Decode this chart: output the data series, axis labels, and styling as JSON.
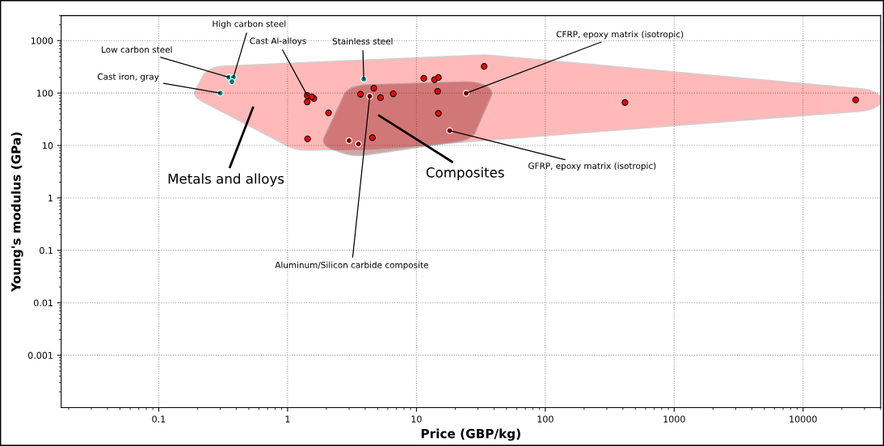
{
  "chart_data": {
    "type": "scatter",
    "xlabel": "Price (GBP/kg)",
    "ylabel": "Young's modulus (GPa)",
    "log": "xy",
    "marker": "circle",
    "grid": true,
    "xlim": [
      0.0175,
      40000
    ],
    "ylim": [
      0.0001,
      3000
    ],
    "xticks": [
      0.1,
      1,
      10,
      100,
      1000,
      10000
    ],
    "yticks": [
      0.001,
      0.01,
      0.1,
      1,
      10,
      100,
      1000
    ],
    "series": [
      {
        "color": "#ff0000",
        "x": [
          1.42,
          1.42,
          1.6,
          1.54,
          2.08,
          1.43,
          3.68,
          4.67,
          5.26,
          6.6,
          4.55,
          11.4,
          13.8,
          14.8,
          14.6,
          14.8,
          33.5,
          415,
          25600
        ],
        "values": [
          90,
          68,
          79,
          85,
          42,
          13.4,
          95,
          124,
          82,
          97,
          14.1,
          191,
          180,
          198,
          108,
          41,
          322,
          66,
          74
        ]
      },
      {
        "color": "#008080",
        "x": [
          0.3,
          0.35,
          0.38,
          0.37,
          3.9
        ],
        "values": [
          100,
          200,
          200,
          165,
          185
        ]
      },
      {
        "color": "#800000",
        "x": [
          3.0,
          3.55,
          4.34,
          24.3,
          18.1
        ],
        "values": [
          12.4,
          10.7,
          87,
          99,
          19.2
        ]
      }
    ],
    "annotations": [
      {
        "text": "Cast iron, gray",
        "x": 0.3,
        "y": 100
      },
      {
        "text": "Low carbon steel",
        "x": 0.35,
        "y": 200
      },
      {
        "text": "High carbon steel",
        "x": 0.38,
        "y": 200
      },
      {
        "text": "Cast Al-alloys",
        "x": 1.42,
        "y": 90
      },
      {
        "text": "Stainless steel",
        "x": 3.9,
        "y": 185
      },
      {
        "text": "CFRP, epoxy matrix (isotropic)",
        "x": 24.3,
        "y": 99
      },
      {
        "text": "GFRP, epoxy matrix (isotropic)",
        "x": 18.1,
        "y": 19.2
      },
      {
        "text": "Aluminum/Silicon carbide composite",
        "x": 4.34,
        "y": 87
      },
      "Metals and alloys",
      "Composites"
    ]
  }
}
